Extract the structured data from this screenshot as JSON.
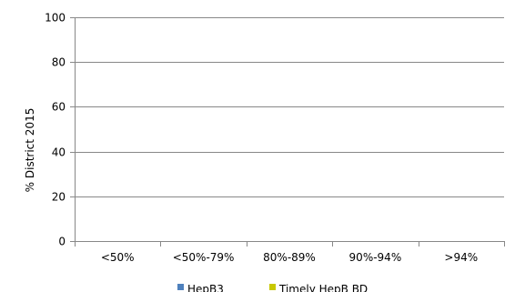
{
  "chart_data": {
    "type": "bar",
    "categories": [
      "<50%",
      "<50%-79%",
      "80%-89%",
      "90%-94%",
      ">94%"
    ],
    "series": [
      {
        "name": "HepB3",
        "values": [
          0,
          0,
          0,
          0,
          0
        ],
        "color": "#4f81bd"
      },
      {
        "name": "Timely HepB BD",
        "values": [
          0,
          0,
          0,
          0,
          0
        ],
        "color": "#c8c800"
      }
    ],
    "ylabel": "% District 2015",
    "xlabel": "",
    "ylim": [
      0,
      100
    ],
    "yticks": [
      0,
      20,
      40,
      60,
      80,
      100
    ],
    "grid": true,
    "legend_position": "bottom"
  }
}
